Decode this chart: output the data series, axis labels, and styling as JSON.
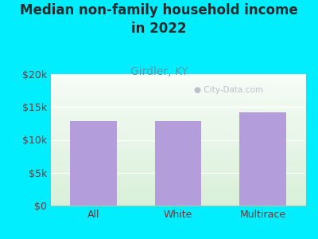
{
  "title": "Median non-family household income\nin 2022",
  "subtitle": "Girdler, KY",
  "categories": [
    "All",
    "White",
    "Multirace"
  ],
  "values": [
    12800,
    12800,
    14200
  ],
  "bar_color": "#b39ddb",
  "background_outer": "#00eeff",
  "background_grad_top": "#f0f8ee",
  "background_grad_bottom": "#d8efd8",
  "title_color": "#2a2a2a",
  "subtitle_color": "#5b9aaa",
  "tick_label_color": "#7a3030",
  "ylim": [
    0,
    20000
  ],
  "yticks": [
    0,
    5000,
    10000,
    15000,
    20000
  ],
  "ytick_labels": [
    "$0",
    "$5k",
    "$10k",
    "$15k",
    "$20k"
  ],
  "title_fontsize": 12,
  "subtitle_fontsize": 10,
  "tick_fontsize": 9,
  "watermark": "City-Data.com"
}
